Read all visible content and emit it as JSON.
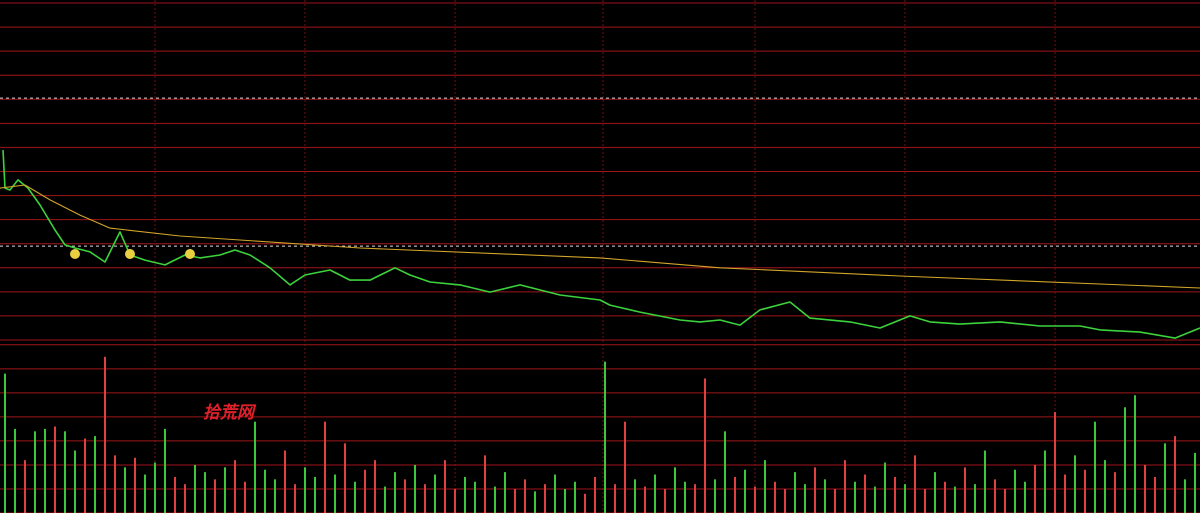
{
  "watermark": "拾荒网",
  "chart_data": [
    {
      "type": "line",
      "xlim": [
        0,
        240
      ],
      "ylim": [
        0,
        14
      ],
      "yticks": [
        0,
        1,
        2,
        3,
        4,
        5,
        6,
        7,
        8,
        9,
        10,
        11,
        12,
        13,
        14
      ],
      "xgrid": [
        31,
        61,
        91,
        120.6,
        151,
        181,
        211
      ],
      "reference_lines": [
        10.05,
        3.9
      ],
      "grid_color": "#a0151a",
      "series": [
        {
          "color": "#3cd23c",
          "x": [
            0.6,
            1,
            2,
            3.6,
            5.6,
            8,
            11,
            13,
            15,
            18,
            21,
            24,
            26,
            29,
            33,
            37,
            40,
            44,
            47,
            50,
            54,
            58,
            61,
            66,
            70,
            74,
            79,
            82,
            86,
            92,
            98,
            104,
            112,
            120,
            122,
            128,
            136,
            140,
            144,
            148,
            152,
            158,
            162,
            170,
            176,
            182,
            186,
            192,
            200,
            208,
            216,
            220,
            228,
            235,
            240
          ],
          "values": [
            7.89,
            6.31,
            6.23,
            6.65,
            6.31,
            5.61,
            4.57,
            3.95,
            3.82,
            3.66,
            3.24,
            4.49,
            3.53,
            3.32,
            3.12,
            3.53,
            3.41,
            3.53,
            3.74,
            3.53,
            3.0,
            2.29,
            2.7,
            2.91,
            2.49,
            2.49,
            3.0,
            2.7,
            2.41,
            2.29,
            1.99,
            2.29,
            1.87,
            1.66,
            1.45,
            1.16,
            0.83,
            0.75,
            0.83,
            0.62,
            1.25,
            1.58,
            0.91,
            0.75,
            0.5,
            1.0,
            0.75,
            0.66,
            0.75,
            0.58,
            0.58,
            0.42,
            0.33,
            0.08,
            0.5
          ]
        },
        {
          "color": "#d2a52a",
          "x": [
            0,
            5,
            10,
            16,
            22,
            36,
            72,
            120,
            144,
            180,
            240
          ],
          "values": [
            6.31,
            6.44,
            5.82,
            5.19,
            4.65,
            4.32,
            3.82,
            3.41,
            3.0,
            2.66,
            2.16
          ]
        }
      ]
    },
    {
      "type": "bar",
      "ylim": [
        0,
        7.2
      ],
      "yticks": [
        0,
        1,
        2,
        3,
        4,
        5,
        6,
        7
      ],
      "palette": {
        "r": "#e04040",
        "g": "#3cc83c"
      },
      "directions": "ggrggrggrgrrgrgggrrggrgrrgggrrggrgrgrrggrgrgrrggrggrrgrgggrrgrrgrgrggrrggrgrgrrggrgrrgrggrgrrgrgrggrrggrgrrgrggrggrrgrgg",
      "values": [
        5.8,
        3.5,
        2.2,
        3.4,
        3.5,
        3.6,
        3.4,
        2.6,
        3.1,
        3.2,
        6.5,
        2.4,
        1.9,
        2.3,
        1.6,
        2.1,
        3.5,
        1.5,
        1.2,
        2.0,
        1.7,
        1.4,
        1.9,
        2.2,
        1.3,
        3.8,
        1.8,
        1.4,
        2.6,
        1.2,
        1.9,
        1.5,
        3.8,
        1.6,
        2.9,
        1.3,
        1.8,
        2.2,
        1.1,
        1.7,
        1.4,
        2.0,
        1.2,
        1.6,
        2.2,
        1.0,
        1.5,
        1.3,
        2.4,
        1.1,
        1.7,
        1.0,
        1.4,
        0.9,
        1.2,
        1.6,
        1.0,
        1.3,
        0.8,
        1.5,
        6.3,
        1.2,
        3.8,
        1.4,
        1.1,
        1.6,
        1.0,
        1.9,
        1.3,
        1.2,
        5.6,
        1.4,
        3.4,
        1.5,
        1.8,
        1.1,
        2.2,
        1.3,
        1.0,
        1.7,
        1.2,
        1.9,
        1.4,
        1.0,
        2.2,
        1.3,
        1.6,
        1.1,
        2.1,
        1.5,
        1.2,
        2.4,
        1.0,
        1.7,
        1.3,
        1.1,
        1.9,
        1.2,
        2.6,
        1.4,
        1.0,
        1.8,
        1.3,
        2.0,
        2.6,
        4.2,
        1.6,
        2.4,
        1.8,
        3.8,
        2.2,
        1.7,
        4.4,
        4.9,
        2.0,
        1.5,
        2.9,
        3.2,
        1.4,
        2.5
      ]
    }
  ]
}
